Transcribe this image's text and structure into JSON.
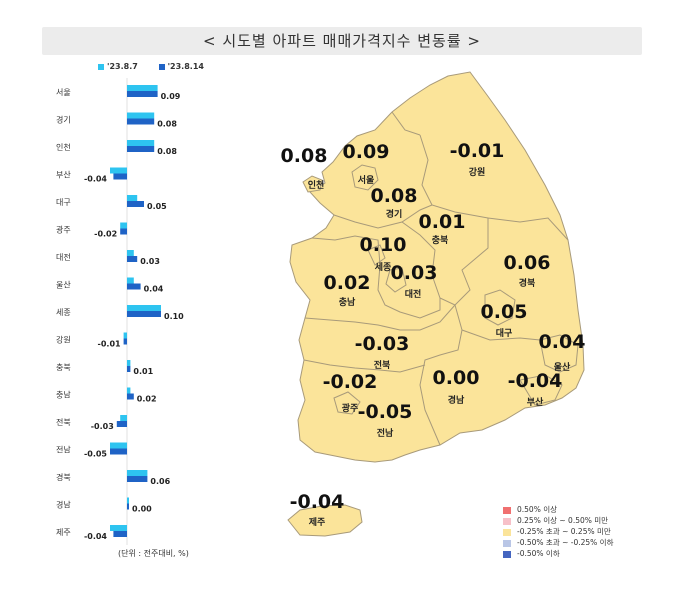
{
  "title": "< 시도별 아파트 매매가격지수 변동률 >",
  "legend": {
    "series": [
      {
        "name": "'23.8.7",
        "color": "#2ec4f0"
      },
      {
        "name": "'23.8.14",
        "color": "#1f63c6"
      }
    ]
  },
  "unit": "(단위 : 전주대비, %)",
  "chart_data": [
    {
      "type": "bar",
      "orientation": "horizontal",
      "categories": [
        "서울",
        "경기",
        "인천",
        "부산",
        "대구",
        "광주",
        "대전",
        "울산",
        "세종",
        "강원",
        "충북",
        "충남",
        "전북",
        "전남",
        "경북",
        "경남",
        "제주"
      ],
      "series": [
        {
          "name": "'23.8.7",
          "values": [
            0.09,
            0.08,
            0.08,
            -0.05,
            0.03,
            -0.02,
            0.02,
            0.02,
            0.1,
            -0.01,
            0.01,
            0.01,
            -0.02,
            -0.05,
            0.06,
            0.0,
            -0.05
          ]
        },
        {
          "name": "'23.8.14",
          "values": [
            0.09,
            0.08,
            0.08,
            -0.04,
            0.05,
            -0.02,
            0.03,
            0.04,
            0.1,
            -0.01,
            0.01,
            0.02,
            -0.03,
            -0.05,
            0.06,
            0.0,
            -0.04
          ]
        }
      ],
      "value_labels": [
        "0.09",
        "0.08",
        "0.08",
        "-0.04",
        "0.05",
        "-0.02",
        "0.03",
        "0.04",
        "0.10",
        "-0.01",
        "0.01",
        "0.02",
        "-0.03",
        "-0.05",
        "0.06",
        "0.00",
        "-0.04"
      ]
    }
  ],
  "map": {
    "regions": [
      {
        "name": "서울",
        "value": "0.09"
      },
      {
        "name": "인천",
        "value": "0.08"
      },
      {
        "name": "경기",
        "value": "0.08"
      },
      {
        "name": "강원",
        "value": "-0.01"
      },
      {
        "name": "충북",
        "value": "0.01"
      },
      {
        "name": "세종",
        "value": "0.10"
      },
      {
        "name": "대전",
        "value": "0.03"
      },
      {
        "name": "충남",
        "value": "0.02"
      },
      {
        "name": "경북",
        "value": "0.06"
      },
      {
        "name": "대구",
        "value": "0.05"
      },
      {
        "name": "울산",
        "value": "0.04"
      },
      {
        "name": "전북",
        "value": "-0.03"
      },
      {
        "name": "광주",
        "value": "-0.02"
      },
      {
        "name": "경남",
        "value": "0.00"
      },
      {
        "name": "부산",
        "value": "-0.04"
      },
      {
        "name": "전남",
        "value": "-0.05"
      },
      {
        "name": "제주",
        "value": "-0.04"
      }
    ],
    "legend": [
      {
        "label": "0.50% 이상",
        "color": "#f07070"
      },
      {
        "label": "0.25% 이상 ~ 0.50% 미만",
        "color": "#f7c0c8"
      },
      {
        "label": "-0.25% 초과 ~ 0.25% 미만",
        "color": "#fbe49a"
      },
      {
        "label": "-0.50% 초과 ~ -0.25% 이하",
        "color": "#b9c6e6"
      },
      {
        "label": "-0.50% 이하",
        "color": "#4465c0"
      }
    ],
    "fill_color": "#fbe49a"
  }
}
